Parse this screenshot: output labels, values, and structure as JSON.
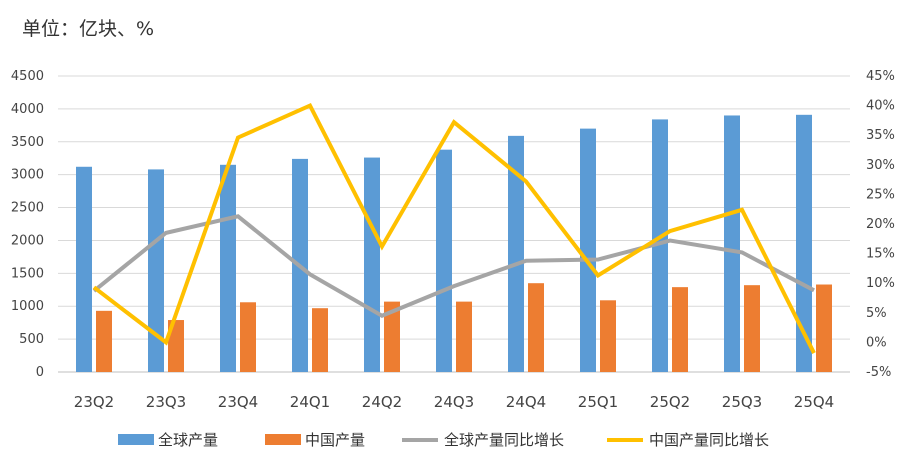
{
  "chart_data": {
    "type": "bar",
    "unit_label": "单位：亿块、%",
    "categories": [
      "23Q2",
      "23Q3",
      "23Q4",
      "24Q1",
      "24Q2",
      "24Q3",
      "24Q4",
      "25Q1",
      "25Q2",
      "25Q3",
      "25Q4"
    ],
    "y_left": {
      "ylim": [
        0,
        4500
      ],
      "ticks": [
        "0",
        "500",
        "1000",
        "1500",
        "2000",
        "2500",
        "3000",
        "3500",
        "4000",
        "4500"
      ]
    },
    "y_right": {
      "ylim": [
        -5,
        45
      ],
      "ticks": [
        "-5%",
        "0%",
        "5%",
        "10%",
        "15%",
        "20%",
        "25%",
        "30%",
        "35%",
        "40%",
        "45%"
      ]
    },
    "grid": true,
    "legend_position": "bottom",
    "series": [
      {
        "name": "全球产量",
        "type": "bar",
        "axis": "left",
        "color": "#5B9BD5",
        "values": [
          3120,
          3080,
          3150,
          3240,
          3260,
          3380,
          3590,
          3700,
          3840,
          3900,
          3910
        ]
      },
      {
        "name": "中国产量",
        "type": "bar",
        "axis": "left",
        "color": "#ED7D31",
        "values": [
          930,
          790,
          1060,
          970,
          1070,
          1070,
          1350,
          1090,
          1290,
          1320,
          1330
        ]
      },
      {
        "name": "全球产量同比增长",
        "type": "line",
        "axis": "right",
        "color": "#A5A5A5",
        "values": [
          8.7,
          18.5,
          21.3,
          11.5,
          4.5,
          9.5,
          13.8,
          14.0,
          17.2,
          15.2,
          8.8
        ]
      },
      {
        "name": "中国产量同比增长",
        "type": "line",
        "axis": "right",
        "color": "#FFC000",
        "values": [
          9.3,
          0.0,
          34.6,
          40.0,
          16.2,
          37.2,
          27.2,
          11.3,
          18.8,
          22.4,
          -1.8
        ]
      }
    ]
  }
}
